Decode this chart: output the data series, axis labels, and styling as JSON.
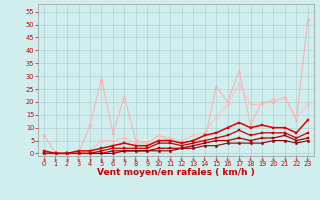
{
  "background_color": "#d0eeee",
  "grid_color": "#aacccc",
  "xlabel": "Vent moyen/en rafales ( km/h )",
  "xlabel_color": "#cc0000",
  "xlabel_fontsize": 6.5,
  "yticks": [
    0,
    5,
    10,
    15,
    20,
    25,
    30,
    35,
    40,
    45,
    50,
    55
  ],
  "xticks": [
    0,
    1,
    2,
    3,
    4,
    5,
    6,
    7,
    8,
    9,
    10,
    11,
    12,
    13,
    14,
    15,
    16,
    17,
    18,
    19,
    20,
    21,
    22,
    23
  ],
  "xlim": [
    -0.5,
    23.5
  ],
  "ylim": [
    -1,
    58
  ],
  "series": [
    {
      "x": [
        0,
        1,
        2,
        3,
        4,
        5,
        6,
        7,
        8,
        9,
        10,
        11,
        12,
        13,
        14,
        15,
        16,
        17,
        18,
        19,
        20,
        21,
        22,
        23
      ],
      "y": [
        7,
        0,
        0,
        0,
        11,
        29,
        8,
        22,
        5,
        4,
        7,
        5,
        4,
        5,
        5,
        26,
        20,
        32,
        11,
        20,
        20,
        22,
        13,
        52
      ],
      "color": "#ffaaaa",
      "linewidth": 0.7,
      "marker": "^",
      "markersize": 2.0,
      "zorder": 2
    },
    {
      "x": [
        0,
        1,
        2,
        3,
        4,
        5,
        6,
        7,
        8,
        9,
        10,
        11,
        12,
        13,
        14,
        15,
        16,
        17,
        18,
        19,
        20,
        21,
        22,
        23
      ],
      "y": [
        0,
        0,
        0,
        0,
        1,
        5,
        5,
        6,
        4,
        4,
        7,
        6,
        5,
        7,
        8,
        14,
        19,
        27,
        19,
        19,
        21,
        21,
        14,
        19
      ],
      "color": "#ffbbbb",
      "linewidth": 0.7,
      "marker": "D",
      "markersize": 1.8,
      "zorder": 2
    },
    {
      "x": [
        0,
        1,
        2,
        3,
        4,
        5,
        6,
        7,
        8,
        9,
        10,
        11,
        12,
        13,
        14,
        15,
        16,
        17,
        18,
        19,
        20,
        21,
        22,
        23
      ],
      "y": [
        1,
        0,
        0,
        1,
        1,
        2,
        3,
        4,
        3,
        3,
        5,
        5,
        4,
        5,
        7,
        8,
        10,
        12,
        10,
        11,
        10,
        10,
        8,
        13
      ],
      "color": "#dd0000",
      "linewidth": 1.1,
      "marker": "s",
      "markersize": 2.0,
      "zorder": 5
    },
    {
      "x": [
        0,
        1,
        2,
        3,
        4,
        5,
        6,
        7,
        8,
        9,
        10,
        11,
        12,
        13,
        14,
        15,
        16,
        17,
        18,
        19,
        20,
        21,
        22,
        23
      ],
      "y": [
        0,
        0,
        0,
        0,
        0,
        1,
        2,
        2,
        2,
        2,
        4,
        4,
        3,
        4,
        5,
        6,
        7,
        9,
        7,
        8,
        8,
        8,
        6,
        8
      ],
      "color": "#cc0000",
      "linewidth": 0.9,
      "marker": "s",
      "markersize": 1.8,
      "zorder": 4
    },
    {
      "x": [
        0,
        1,
        2,
        3,
        4,
        5,
        6,
        7,
        8,
        9,
        10,
        11,
        12,
        13,
        14,
        15,
        16,
        17,
        18,
        19,
        20,
        21,
        22,
        23
      ],
      "y": [
        0,
        0,
        0,
        0,
        0,
        0,
        1,
        1,
        1,
        1,
        2,
        2,
        2,
        3,
        4,
        5,
        5,
        6,
        5,
        6,
        6,
        7,
        5,
        6
      ],
      "color": "#aa0000",
      "linewidth": 0.9,
      "marker": "s",
      "markersize": 1.6,
      "zorder": 3
    },
    {
      "x": [
        0,
        1,
        2,
        3,
        4,
        5,
        6,
        7,
        8,
        9,
        10,
        11,
        12,
        13,
        14,
        15,
        16,
        17,
        18,
        19,
        20,
        21,
        22,
        23
      ],
      "y": [
        0,
        0,
        0,
        0,
        0,
        0,
        0,
        1,
        1,
        1,
        1,
        1,
        2,
        2,
        3,
        3,
        4,
        4,
        4,
        4,
        5,
        5,
        4,
        5
      ],
      "color": "#880000",
      "linewidth": 0.8,
      "marker": "s",
      "markersize": 1.4,
      "zorder": 3
    }
  ],
  "tick_color": "#cc0000",
  "tick_fontsize": 4.8,
  "ytick_fontsize": 4.8
}
